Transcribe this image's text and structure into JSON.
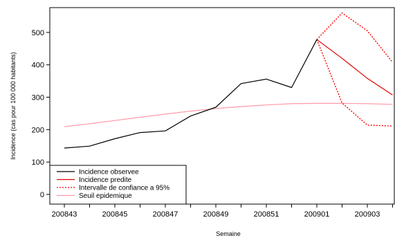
{
  "chart_data": {
    "type": "line",
    "title": "",
    "xlabel": "Semaine",
    "ylabel": "Incidence (cas pour 100 000 habitants)",
    "x_tick_labels": [
      "200843",
      "200845",
      "200847",
      "200849",
      "200851",
      "200901",
      "200903"
    ],
    "y_tick_labels": [
      "0",
      "100",
      "200",
      "300",
      "400",
      "500"
    ],
    "ylim": [
      -20,
      580
    ],
    "grid": false,
    "legend_position": "bottom-left",
    "x": [
      "200843",
      "200844",
      "200845",
      "200846",
      "200847",
      "200848",
      "200849",
      "200850",
      "200851",
      "200852",
      "200901",
      "200902",
      "200903",
      "200904"
    ],
    "series": [
      {
        "name": "Incidence observee",
        "color": "#000000",
        "style": "solid",
        "x": [
          "200843",
          "200844",
          "200845",
          "200846",
          "200847",
          "200848",
          "200849",
          "200850",
          "200851",
          "200852",
          "200901"
        ],
        "values": [
          143,
          149,
          172,
          191,
          196,
          242,
          269,
          342,
          356,
          330,
          478
        ]
      },
      {
        "name": "Incidence predite",
        "color": "#e00000",
        "style": "solid",
        "x": [
          "200901",
          "200902",
          "200903",
          "200904"
        ],
        "values": [
          478,
          420,
          358,
          307
        ]
      },
      {
        "name": "Intervalle de confiance a 95%",
        "color": "#ff0000",
        "style": "dotted",
        "x": [
          "200901",
          "200902",
          "200903",
          "200904"
        ],
        "values": [
          478,
          560,
          505,
          408
        ]
      },
      {
        "name": "Intervalle de confiance a 95% (borne inferieure)",
        "color": "#ff0000",
        "style": "dotted",
        "x": [
          "200901",
          "200902",
          "200903",
          "200904"
        ],
        "values": [
          478,
          282,
          214,
          211
        ]
      },
      {
        "name": "Seuil epidemique",
        "color": "#ff9aa8",
        "style": "solid",
        "x": [
          "200843",
          "200844",
          "200845",
          "200846",
          "200847",
          "200848",
          "200849",
          "200850",
          "200851",
          "200852",
          "200901",
          "200902",
          "200903",
          "200904"
        ],
        "values": [
          209,
          218,
          228,
          238,
          248,
          257,
          265,
          271,
          276,
          280,
          281,
          281,
          280,
          278
        ]
      }
    ],
    "legend": [
      {
        "label": "Incidence observee",
        "color": "#000000",
        "style": "solid"
      },
      {
        "label": "Incidence predite",
        "color": "#e00000",
        "style": "solid"
      },
      {
        "label": "Intervalle de confiance a 95%",
        "color": "#ff0000",
        "style": "dotted"
      },
      {
        "label": "Seuil epidemique",
        "color": "#ff9aa8",
        "style": "solid"
      }
    ]
  }
}
